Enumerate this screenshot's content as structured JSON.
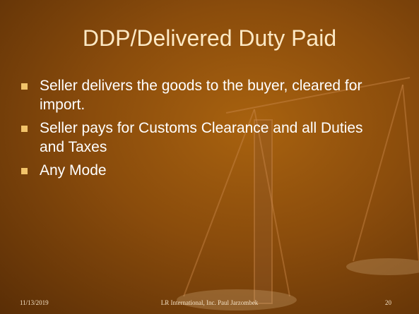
{
  "slide": {
    "title": "DDP/Delivered Duty Paid",
    "bullets": [
      "Seller delivers the goods to the buyer, cleared for import.",
      "Seller pays for Customs Clearance and all Duties and Taxes",
      "Any Mode"
    ],
    "footer": {
      "date": "11/13/2019",
      "center": "LR International, Inc.  Paul Jarzombek",
      "page": "20"
    }
  }
}
